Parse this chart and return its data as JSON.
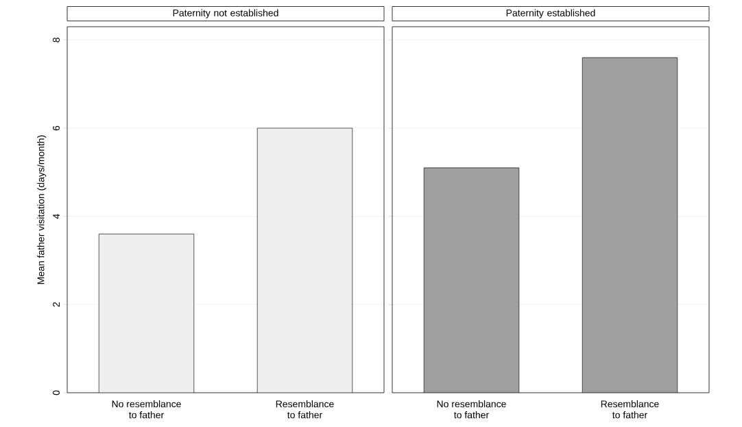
{
  "chart_data": [
    {
      "type": "bar",
      "title": "Paternity not established",
      "ylabel": "Mean father visitation (days/month)",
      "categories": [
        "No resemblance to father",
        "Resemblance to father"
      ],
      "values": [
        3.6,
        6.0
      ],
      "color": "#efefef",
      "ylim": [
        0,
        8.3
      ],
      "yticks": [
        0,
        2,
        4,
        6,
        8
      ],
      "grid": "y"
    },
    {
      "type": "bar",
      "title": "Paternity established",
      "categories": [
        "No resemblance to father",
        "Resemblance to father"
      ],
      "values": [
        5.1,
        7.6
      ],
      "color": "#a0a0a0",
      "ylim": [
        0,
        8.3
      ],
      "yticks": [
        0,
        2,
        4,
        6,
        8
      ],
      "grid": "y",
      "tick_labels": "x"
    }
  ]
}
